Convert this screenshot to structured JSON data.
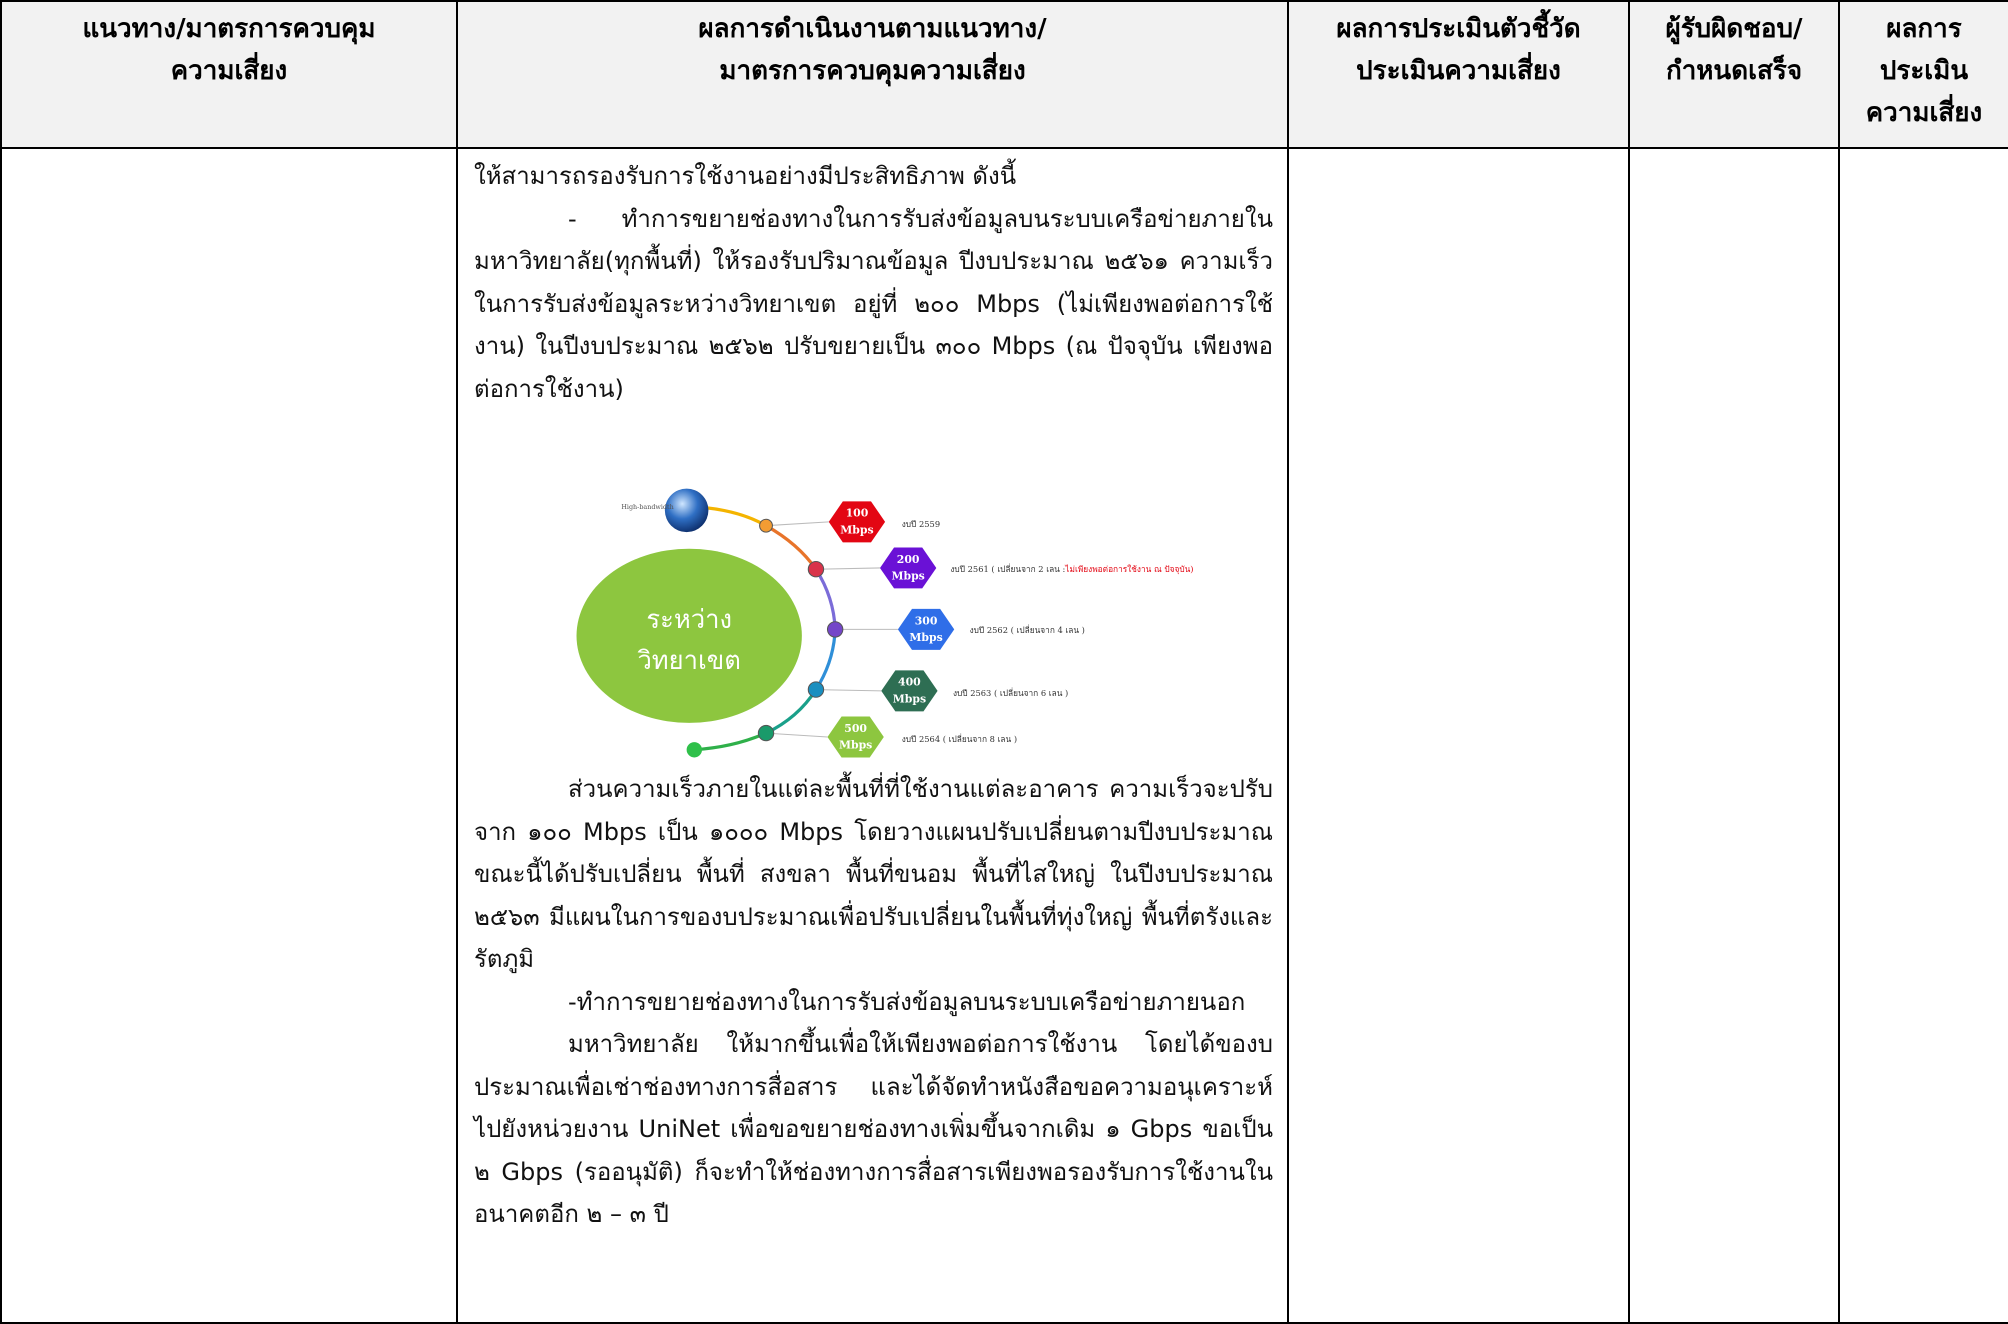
{
  "header": {
    "columns": [
      [
        "แนวทาง/มาตรการควบคุม",
        "ความเสี่ยง"
      ],
      [
        "ผลการดำเนินงานตามแนวทาง/",
        "มาตรการควบคุมความเสี่ยง"
      ],
      [
        "ผลการประเมินตัวชี้วัด",
        "ประเมินความเสี่ยง"
      ],
      [
        "ผู้รับผิดชอบ/",
        "กำหนดเสร็จ"
      ],
      [
        "ผลการ",
        "ประเมิน",
        "ความเสี่ยง"
      ]
    ]
  },
  "body": {
    "paragraphs_before": [
      "ให้สามารถรองรับการใช้งานอย่างมีประสิทธิภาพ ดังนี้",
      "- ทำการขยายช่องทางในการรับส่งข้อมูลบนระบบเครือข่ายภายใน มหาวิทยาลัย(ทุกพื้นที่) ให้รองรับปริมาณข้อมูล ปีงบประมาณ ๒๕๖๑  ความเร็วในการรับส่งข้อมูลระหว่างวิทยาเขต    อยู่ที่ ๒๐๐ Mbps (ไม่เพียงพอต่อการใช้งาน) ในปีงบประมาณ ๒๕๖๒ ปรับขยายเป็น ๓๐๐  Mbps   (ณ ปัจจุบัน เพียงพอต่อการใช้งาน)"
    ],
    "diagram": {
      "center": [
        "ระหว่าง",
        "วิทยาเขต"
      ],
      "source": "High-bandwidth",
      "items": [
        {
          "speed": [
            "100",
            "Mbps"
          ],
          "label": "งบปี 2559"
        },
        {
          "speed": [
            "200",
            "Mbps"
          ],
          "label": "งบปี 2561 ( เปลี่ยนจาก 2 เลน :",
          "note": "ไม่เพียงพอต่อการใช้งาน ณ ปัจจุบัน)"
        },
        {
          "speed": [
            "300",
            "Mbps"
          ],
          "label": "งบปี 2562 ( เปลี่ยนจาก 4 เลน )"
        },
        {
          "speed": [
            "400",
            "Mbps"
          ],
          "label": "งบปี 2563 ( เปลี่ยนจาก 6 เลน )"
        },
        {
          "speed": [
            "500",
            "Mbps"
          ],
          "label": "งบปี 2564 ( เปลี่ยนจาก 8 เลน )"
        }
      ]
    },
    "paragraphs_after": [
      "ส่วนความเร็วภายในแต่ละพื้นที่ที่ใช้งานแต่ละอาคาร ความเร็วจะปรับจาก ๑๐๐ Mbps เป็น ๑๐๐๐ Mbps โดยวางแผนปรับเปลี่ยนตามปีงบประมาณ ขณะนี้ได้ปรับเปลี่ยน พื้นที่ สงขลา พื้นที่ขนอม พื้นที่ไสใหญ่ ในปีงบประมาณ ๒๕๖๓ มีแผนในการของบประมาณเพื่อปรับเปลี่ยนในพื้นที่ทุ่งใหญ่ พื้นที่ตรังและรัตภูมิ",
      "-ทำการขยายช่องทางในการรับส่งข้อมูลบนระบบเครือข่ายภายนอก",
      "มหาวิทยาลัย ให้มากขึ้นเพื่อให้เพียงพอต่อการใช้งาน โดยได้ของบประมาณเพื่อเช่าช่องทางการสื่อสาร และได้จัดทำหนังสือขอความอนุเคราะห์ไปยังหน่วยงาน UniNet เพื่อขอขยายช่องทางเพิ่มขึ้นจากเดิม ๑ Gbps ขอเป็น ๒ Gbps (รออนุมัติ)   ก็จะทำให้ช่องทางการสื่อสารเพียงพอรองรับการใช้งานในอนาคตอีก ๒ – ๓ ปี"
    ]
  }
}
